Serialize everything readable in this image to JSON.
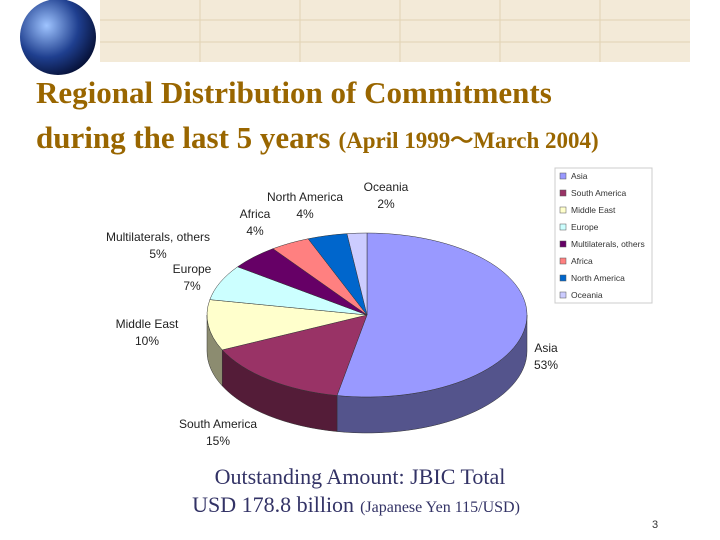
{
  "chart_data": {
    "type": "pie3d",
    "title": [
      "Regional Distribution of Commitments",
      "during the last 5 years"
    ],
    "subtitle": "(April 1999～March 2004)",
    "categories": [
      "Asia",
      "South America",
      "Middle East",
      "Europe",
      "Multilaterals, others",
      "Africa",
      "North America",
      "Oceania"
    ],
    "values": [
      53,
      15,
      10,
      7,
      5,
      4,
      4,
      2
    ],
    "value_labels": [
      "53%",
      "15%",
      "10%",
      "7%",
      "5%",
      "4%",
      "4%",
      "2%"
    ],
    "colors": [
      "#9999ff",
      "#993366",
      "#ffffcc",
      "#ccffff",
      "#660066",
      "#ff8080",
      "#0066cc",
      "#ccccff"
    ],
    "legend": "right"
  },
  "slide": {
    "notes": [
      "Outstanding Amount: JBIC Total",
      "USD 178.8 billion"
    ],
    "note_small": "(Japanese Yen 115/USD)",
    "page_number": "3"
  }
}
